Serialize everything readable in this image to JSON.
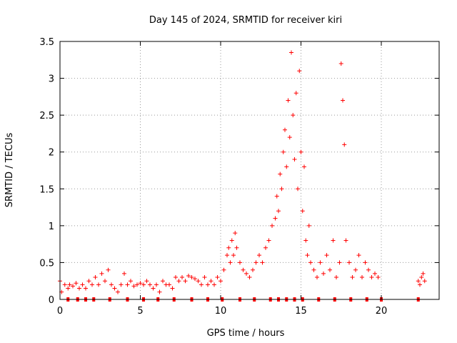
{
  "chart_data": {
    "type": "scatter",
    "title": "Day 145 of 2024, SRMTID for receiver kiri",
    "xlabel": "GPS time / hours",
    "ylabel": "SRMTID / TECUs",
    "xlim": [
      0,
      23.6
    ],
    "ylim": [
      0,
      3.5
    ],
    "xticks": [
      0,
      5,
      10,
      15,
      20
    ],
    "yticks": [
      0,
      0.5,
      1,
      1.5,
      2,
      2.5,
      3,
      3.5
    ],
    "xtick_labels": [
      "0",
      "5",
      "10",
      "15",
      "20"
    ],
    "ytick_labels": [
      "0",
      "0.5",
      "1",
      "1.5",
      "2",
      "2.5",
      "3",
      "3.5"
    ],
    "grid": true,
    "marker": "+",
    "color": "#ff0000",
    "series": [
      {
        "name": "SRMTID",
        "x": [
          0.0,
          0.1,
          0.3,
          0.5,
          0.6,
          0.8,
          1.0,
          1.2,
          1.4,
          1.6,
          1.8,
          2.0,
          2.2,
          2.4,
          2.6,
          2.8,
          3.0,
          3.2,
          3.4,
          3.6,
          3.8,
          4.0,
          4.2,
          4.4,
          4.6,
          4.8,
          5.0,
          5.2,
          5.4,
          5.6,
          5.8,
          6.0,
          6.2,
          6.4,
          6.6,
          6.8,
          7.0,
          7.2,
          7.4,
          7.6,
          7.8,
          8.0,
          8.2,
          8.4,
          8.6,
          8.8,
          9.0,
          9.2,
          9.4,
          9.6,
          9.8,
          10.0,
          10.2,
          10.4,
          10.5,
          10.6,
          10.7,
          10.8,
          10.9,
          11.0,
          11.2,
          11.4,
          11.6,
          11.8,
          12.0,
          12.2,
          12.4,
          12.6,
          12.8,
          13.0,
          13.2,
          13.4,
          13.5,
          13.6,
          13.7,
          13.8,
          13.9,
          14.0,
          14.1,
          14.2,
          14.3,
          14.4,
          14.5,
          14.6,
          14.7,
          14.8,
          14.9,
          15.0,
          15.1,
          15.2,
          15.3,
          15.4,
          15.5,
          15.6,
          15.8,
          16.0,
          16.2,
          16.4,
          16.6,
          16.8,
          17.0,
          17.2,
          17.4,
          17.5,
          17.6,
          17.7,
          17.8,
          18.0,
          18.2,
          18.4,
          18.6,
          18.8,
          19.0,
          19.2,
          19.4,
          19.6,
          19.8,
          22.3,
          22.4,
          22.5,
          22.6,
          22.7
        ],
        "y": [
          0.25,
          0.1,
          0.2,
          0.15,
          0.2,
          0.18,
          0.22,
          0.15,
          0.2,
          0.15,
          0.25,
          0.2,
          0.3,
          0.2,
          0.35,
          0.25,
          0.4,
          0.2,
          0.15,
          0.1,
          0.2,
          0.35,
          0.2,
          0.25,
          0.18,
          0.2,
          0.22,
          0.2,
          0.25,
          0.2,
          0.15,
          0.2,
          0.1,
          0.25,
          0.2,
          0.2,
          0.15,
          0.3,
          0.25,
          0.3,
          0.25,
          0.32,
          0.3,
          0.28,
          0.25,
          0.2,
          0.3,
          0.2,
          0.25,
          0.2,
          0.3,
          0.25,
          0.4,
          0.6,
          0.7,
          0.5,
          0.8,
          0.6,
          0.9,
          0.7,
          0.5,
          0.4,
          0.35,
          0.3,
          0.4,
          0.5,
          0.6,
          0.5,
          0.7,
          0.8,
          1.0,
          1.1,
          1.4,
          1.2,
          1.7,
          1.5,
          2.0,
          2.3,
          1.8,
          2.7,
          2.2,
          3.35,
          2.5,
          1.9,
          2.8,
          1.5,
          3.1,
          2.0,
          1.2,
          1.8,
          0.8,
          0.6,
          1.0,
          0.5,
          0.4,
          0.3,
          0.5,
          0.35,
          0.6,
          0.4,
          0.8,
          0.3,
          0.5,
          3.2,
          2.7,
          2.1,
          0.8,
          0.5,
          0.3,
          0.4,
          0.6,
          0.3,
          0.5,
          0.4,
          0.3,
          0.35,
          0.3,
          0.25,
          0.2,
          0.3,
          0.35,
          0.25
        ]
      }
    ],
    "x_markers": [
      0.5,
      1.1,
      1.6,
      2.1,
      3.1,
      4.2,
      5.2,
      6.1,
      7.1,
      8.2,
      9.2,
      10.1,
      11.2,
      12.1,
      13.1,
      13.6,
      14.1,
      14.6,
      15.1,
      16.1,
      17.1,
      18.1,
      19.1,
      20.0,
      22.3
    ]
  }
}
